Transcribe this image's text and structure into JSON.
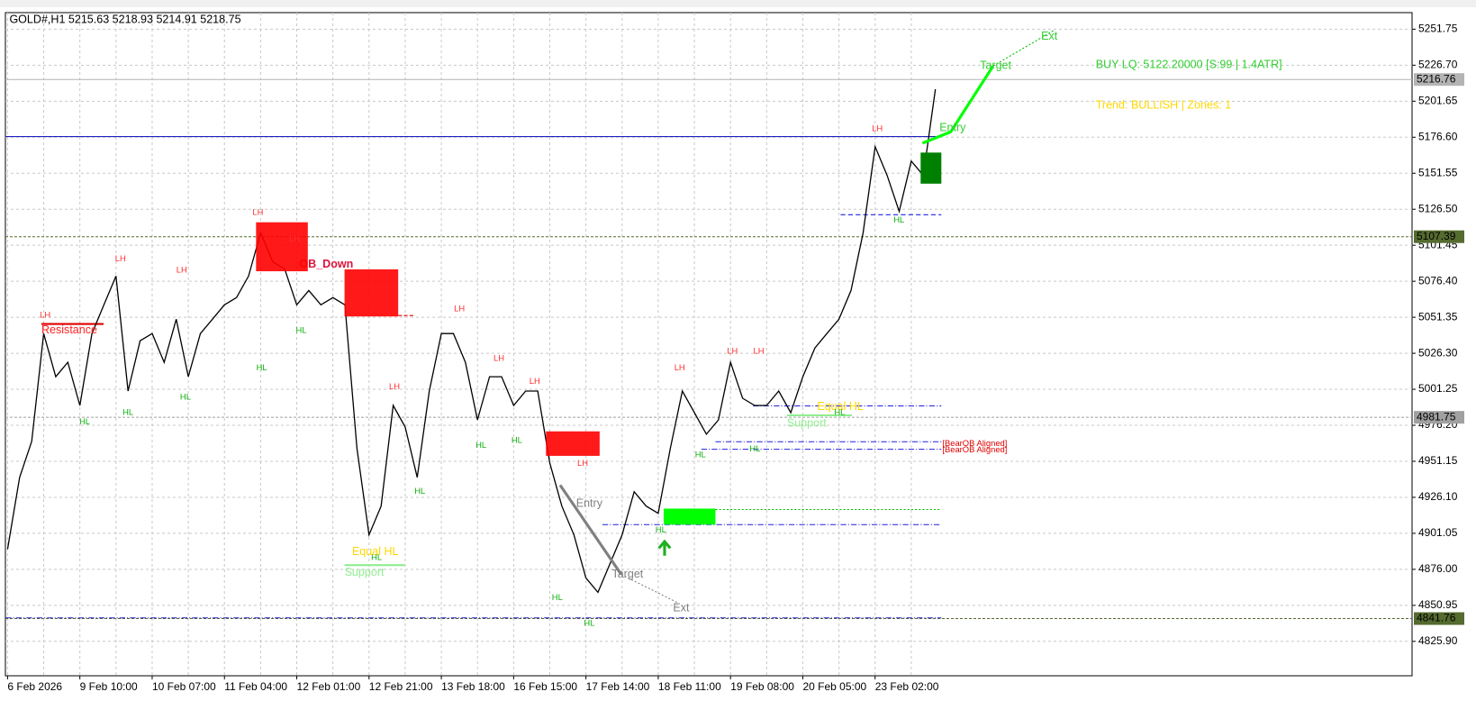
{
  "header": "GOLD#,H1  5215.63 5218.93 5214.91 5218.75",
  "chart_data": {
    "type": "line",
    "categories": [
      "6 Feb 2026",
      null,
      null,
      null,
      null,
      null,
      "9 Feb 10:00",
      null,
      null,
      null,
      null,
      null,
      "10 Feb 07:00",
      null,
      null,
      null,
      null,
      null,
      "11 Feb 04:00",
      null,
      null,
      null,
      null,
      null,
      "12 Feb 01:00",
      null,
      null,
      null,
      null,
      null,
      "12 Feb 21:00",
      null,
      null,
      null,
      null,
      null,
      "13 Feb 18:00",
      null,
      null,
      null,
      null,
      null,
      "16 Feb 15:00",
      null,
      null,
      null,
      null,
      null,
      "17 Feb 14:00",
      null,
      null,
      null,
      null,
      null,
      "18 Feb 11:00",
      null,
      null,
      null,
      null,
      null,
      "19 Feb 08:00",
      null,
      null,
      null,
      null,
      null,
      "20 Feb 05:00",
      null,
      null,
      null,
      null,
      null,
      "23 Feb 02:00",
      null,
      null,
      null,
      null,
      null
    ],
    "values": [
      4890,
      4940,
      4965,
      5040,
      5010,
      5020,
      4990,
      5040,
      5060,
      5080,
      5000,
      5035,
      5040,
      5020,
      5050,
      5010,
      5040,
      5050,
      5060,
      5065,
      5080,
      5110,
      5090,
      5085,
      5060,
      5070,
      5060,
      5065,
      5060,
      4960,
      4900,
      4920,
      4990,
      4975,
      4940,
      5000,
      5040,
      5040,
      5020,
      4980,
      5010,
      5010,
      4990,
      5000,
      5000,
      4950,
      4920,
      4900,
      4870,
      4860,
      4880,
      4900,
      4930,
      4920,
      4915,
      4960,
      5000,
      4985,
      4970,
      4980,
      5020,
      4995,
      4990,
      4990,
      5000,
      4985,
      5010,
      5030,
      5040,
      5050,
      5070,
      5110,
      5170,
      5150,
      5125,
      5160,
      5150,
      5210
    ],
    "color": "#000000",
    "ylim": [
      4801.96,
      5263.28
    ],
    "yticks": [
      5251.75,
      {
        "value": 5226.7,
        "label": "5226.70"
      },
      5201.65,
      {
        "value": 5176.6,
        "label": "5176.60"
      },
      5151.55,
      {
        "value": 5126.5,
        "label": "5126.50"
      },
      5101.45,
      {
        "value": 5076.4,
        "label": "5076.40"
      },
      5051.35,
      {
        "value": 5026.3,
        "label": "5026.30"
      },
      5001.25,
      {
        "value": 4976.2,
        "label": "4976.20"
      },
      4951.15,
      {
        "value": 4926.1,
        "label": "4926.10"
      },
      4901.05,
      {
        "value": 4876,
        "label": "4876.00"
      },
      4850.95,
      {
        "value": 4825.9,
        "label": "4825.90"
      }
    ],
    "grid": true,
    "levels": [
      {
        "value": 5216.76,
        "color": "#b4b4b4"
      },
      {
        "value": 5107.39,
        "color": "#556b2f"
      },
      {
        "value": 4981.75,
        "color": "#a0a0a0"
      },
      {
        "value": 4841.76,
        "color": "#556b2f"
      }
    ],
    "annotations": {
      "buy": "BUY LQ: 5122.20000 [S:99 | 1.4ATR]",
      "trend": "Trend: BULLISH | Zones: 1",
      "ext": "Ext",
      "target": "Target",
      "entry": "Entry",
      "ob_down": "OB_Down",
      "resistance": "Resistance",
      "equal_hl": "Equal HL",
      "support": "Support",
      "bear_ob": "[BearOB Aligned]"
    },
    "swing_labels": [
      "LH",
      "LH",
      "LH",
      "LH",
      "LH",
      "LH",
      "LH",
      "LH",
      "LH",
      "LH",
      "LH",
      "LH",
      "LH",
      "LH",
      "HL",
      "HL",
      "HL",
      "HL",
      "HL",
      "HL",
      "HL",
      "HL",
      "HL",
      "HL",
      "HL",
      "HL",
      "HL",
      "HL",
      "HL",
      "HL"
    ]
  }
}
